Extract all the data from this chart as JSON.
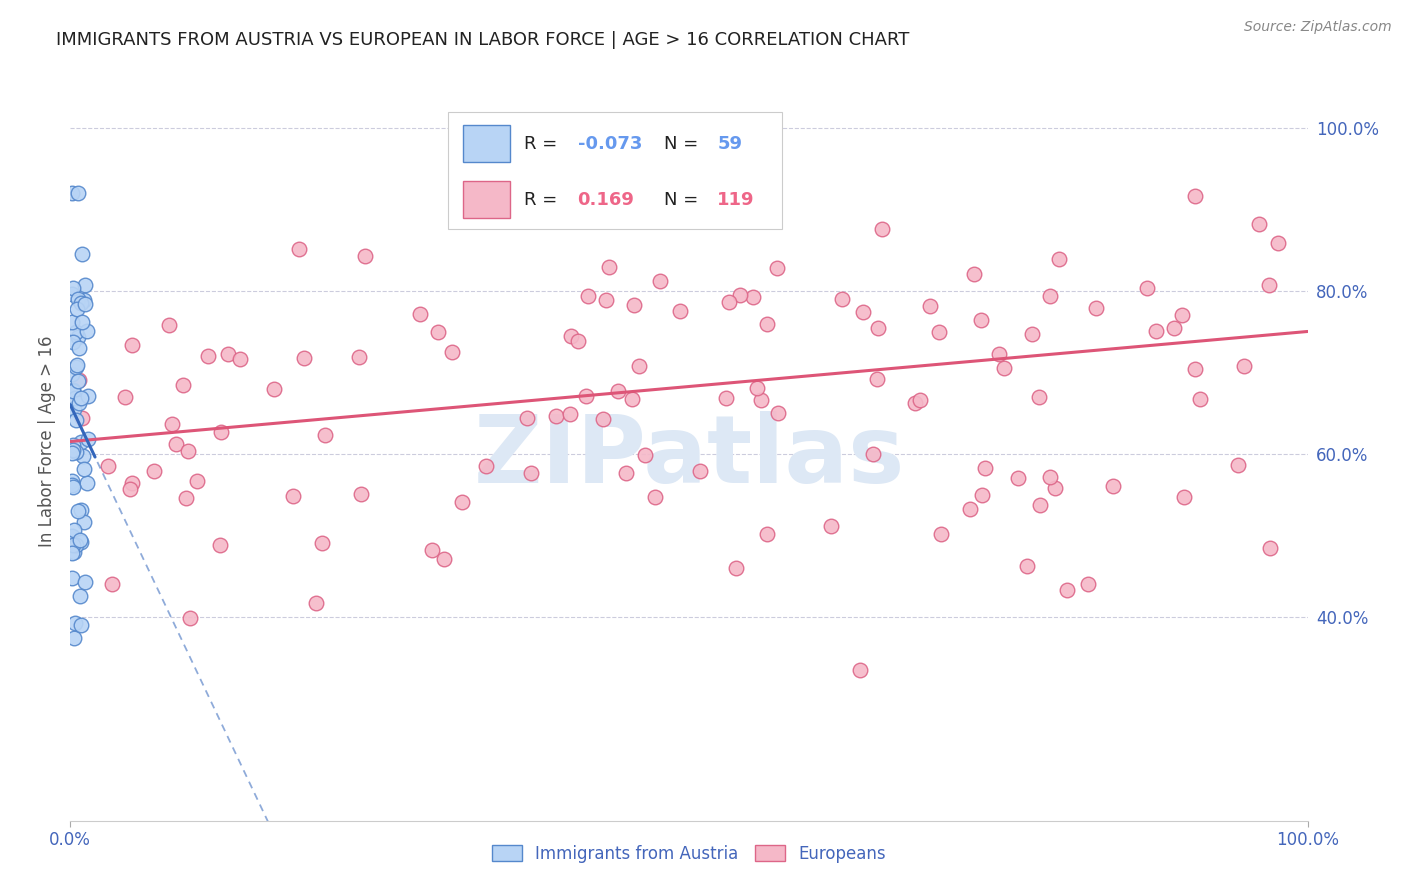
{
  "title": "IMMIGRANTS FROM AUSTRIA VS EUROPEAN IN LABOR FORCE | AGE > 16 CORRELATION CHART",
  "source": "Source: ZipAtlas.com",
  "ylabel": "In Labor Force | Age > 16",
  "austria_R": -0.073,
  "austria_N": 59,
  "european_R": 0.169,
  "european_N": 119,
  "austria_color": "#b8d4f5",
  "austria_edge_color": "#5588cc",
  "european_color": "#f5b8c8",
  "european_edge_color": "#dd6688",
  "austria_trend_color": "#3366bb",
  "european_trend_color": "#dd5577",
  "background_color": "#ffffff",
  "grid_color": "#ccccdd",
  "title_color": "#222222",
  "axis_color": "#4466bb",
  "legend_color_austria": "#6699ee",
  "legend_color_european": "#ee6688",
  "legend_text_color": "#222222",
  "watermark_color": "#dde8f5",
  "austria_trend_intercept": 0.66,
  "austria_trend_slope": -3.2,
  "european_trend_intercept": 0.615,
  "european_trend_slope": 0.135
}
